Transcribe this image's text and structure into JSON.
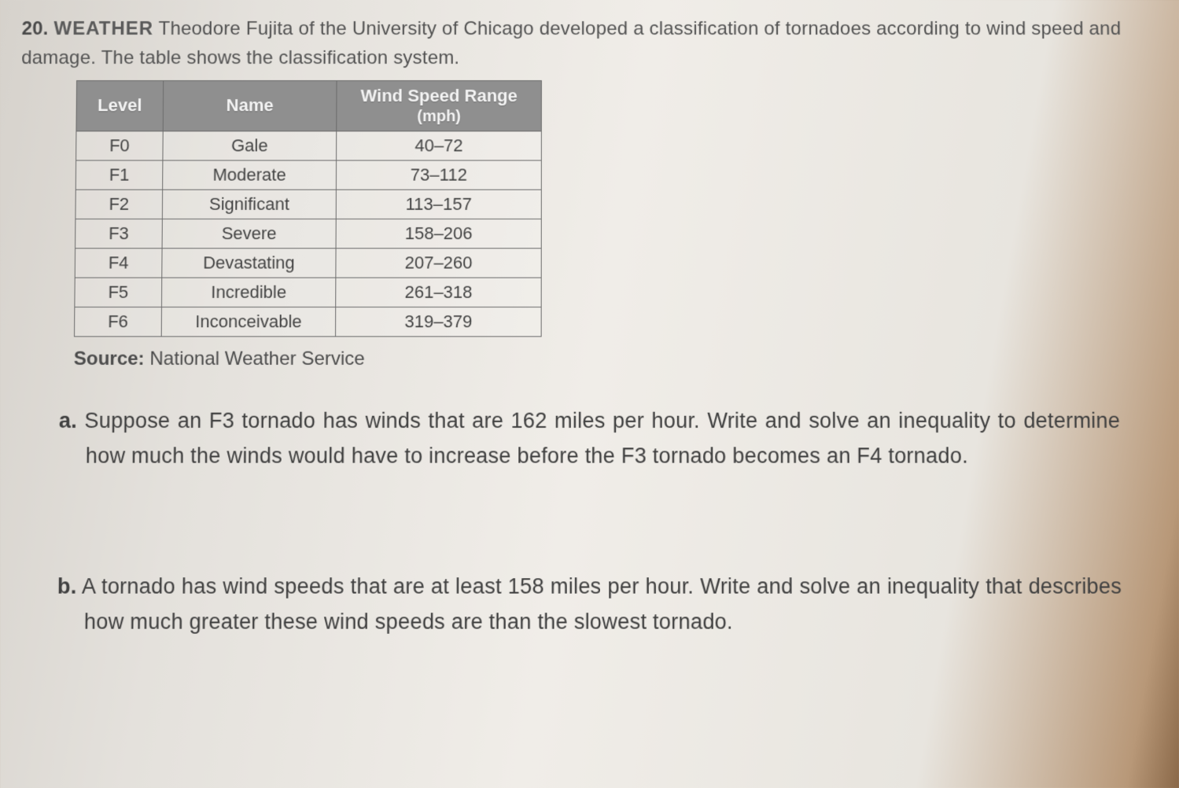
{
  "question": {
    "number": "20.",
    "topic": "WEATHER",
    "intro": "Theodore Fujita of the University of Chicago developed a classification of tornadoes according to wind speed and damage. The table shows the classification system."
  },
  "table": {
    "columns": [
      "Level",
      "Name",
      "Wind Speed Range"
    ],
    "range_unit": "(mph)",
    "rows": [
      {
        "level": "F0",
        "name": "Gale",
        "range": "40–72"
      },
      {
        "level": "F1",
        "name": "Moderate",
        "range": "73–112"
      },
      {
        "level": "F2",
        "name": "Significant",
        "range": "113–157"
      },
      {
        "level": "F3",
        "name": "Severe",
        "range": "158–206"
      },
      {
        "level": "F4",
        "name": "Devastating",
        "range": "207–260"
      },
      {
        "level": "F5",
        "name": "Incredible",
        "range": "261–318"
      },
      {
        "level": "F6",
        "name": "Inconceivable",
        "range": "319–379"
      }
    ],
    "header_bg": "#8f8f8f",
    "header_fg": "#f4f4f4",
    "border_color": "#6b6b6b",
    "cell_fg": "#444444",
    "font_size_pt": 16
  },
  "source": {
    "label": "Source:",
    "text": "National Weather Service"
  },
  "parts": {
    "a": {
      "label": "a.",
      "text": "Suppose an F3 tornado has winds that are 162 miles per hour. Write and solve an inequality to determine how much the winds would have to increase before the F3 tornado becomes an F4 tornado."
    },
    "b": {
      "label": "b.",
      "text": "A tornado has wind speeds that are at least 158 miles per hour. Write and solve an inequality that describes how much greater these wind speeds are than the slowest tornado."
    }
  },
  "style": {
    "page_bg_start": "#d6d2cc",
    "page_bg_mid": "#f0ede8",
    "page_bg_edge": "#8a6848",
    "text_color": "#3a3a3a",
    "intro_font_size_pt": 18,
    "part_font_size_pt": 20
  }
}
